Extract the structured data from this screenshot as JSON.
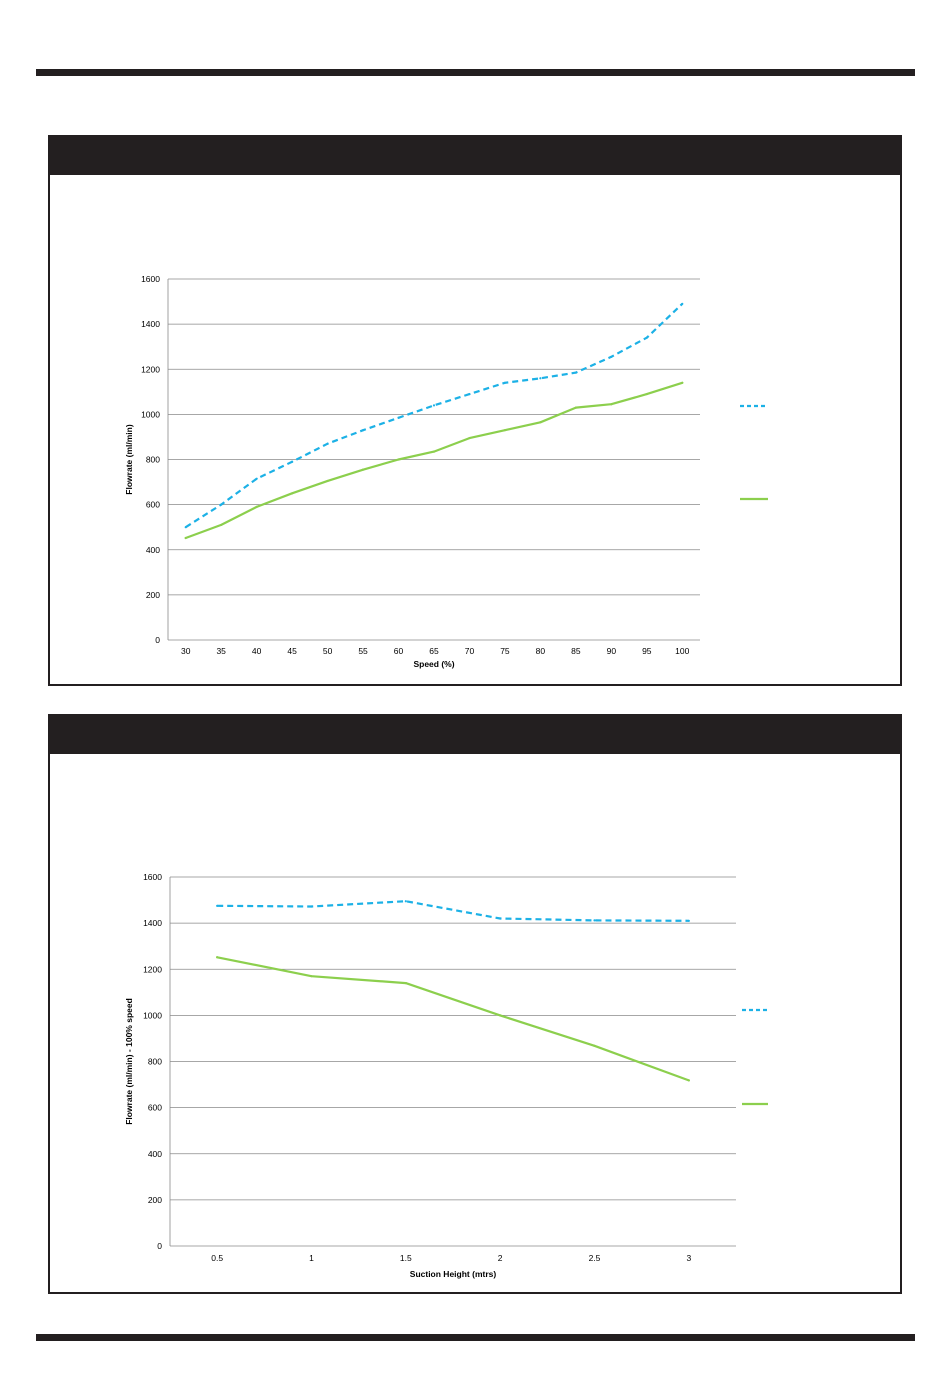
{
  "chart_data": [
    {
      "type": "line",
      "title": "",
      "xlabel": "Speed (%)",
      "ylabel": "Flowrate (ml/min)",
      "categories": [
        "30",
        "35",
        "40",
        "45",
        "50",
        "55",
        "60",
        "65",
        "70",
        "75",
        "80",
        "85",
        "90",
        "95",
        "100"
      ],
      "ylim": [
        0,
        1600
      ],
      "yticks": [
        0,
        200,
        400,
        600,
        800,
        1000,
        1200,
        1400,
        1600
      ],
      "grid": true,
      "legend": "right",
      "series": [
        {
          "color": "#1cb1e6",
          "style": "dashed",
          "values": [
            500,
            600,
            715,
            790,
            870,
            930,
            985,
            1040,
            1090,
            1140,
            1160,
            1185,
            1255,
            1340,
            1490
          ]
        },
        {
          "color": "#8ccf4d",
          "style": "solid",
          "values": [
            452,
            510,
            590,
            650,
            705,
            755,
            800,
            835,
            895,
            930,
            965,
            1030,
            1045,
            1090,
            1140
          ]
        }
      ]
    },
    {
      "type": "line",
      "title": "",
      "xlabel": "Suction Height (mtrs)",
      "ylabel": "Flowrate (ml/min) - 100% speed",
      "categories": [
        "0.5",
        "1",
        "1.5",
        "2",
        "2.5",
        "3"
      ],
      "ylim": [
        0,
        1600
      ],
      "yticks": [
        0,
        200,
        400,
        600,
        800,
        1000,
        1200,
        1400,
        1600
      ],
      "grid": true,
      "legend": "right",
      "series": [
        {
          "color": "#1cb1e6",
          "style": "dashed",
          "values": [
            1475,
            1472,
            1495,
            1420,
            1412,
            1410
          ]
        },
        {
          "color": "#8ccf4d",
          "style": "solid",
          "values": [
            1252,
            1170,
            1140,
            1000,
            868,
            718
          ]
        }
      ]
    }
  ]
}
